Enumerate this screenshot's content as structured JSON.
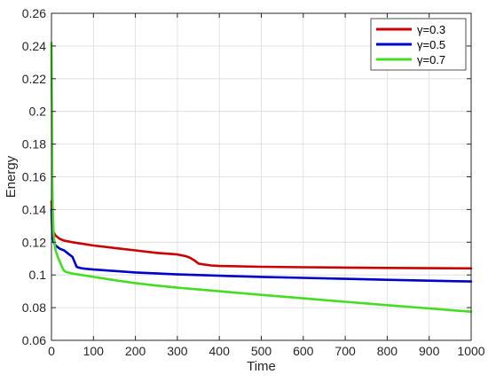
{
  "chart_data": {
    "type": "line",
    "xlabel": "Time",
    "ylabel": "Energy",
    "xlim": [
      0,
      1000
    ],
    "ylim": [
      0.06,
      0.26
    ],
    "xticks": [
      0,
      100,
      200,
      300,
      400,
      500,
      600,
      700,
      800,
      900,
      1000
    ],
    "yticks": [
      0.06,
      0.08,
      0.1,
      0.12,
      0.14,
      0.16,
      0.18,
      0.2,
      0.22,
      0.24,
      0.26
    ],
    "xtick_labels": [
      "0",
      "100",
      "200",
      "300",
      "400",
      "500",
      "600",
      "700",
      "800",
      "900",
      "1000"
    ],
    "ytick_labels": [
      "0.06",
      "0.08",
      "0.1",
      "0.12",
      "0.14",
      "0.16",
      "0.18",
      "0.2",
      "0.22",
      "0.24",
      "0.26"
    ],
    "grid": true,
    "legend_position": "top-right",
    "series": [
      {
        "name": "γ=0.3",
        "color": "#cc0000",
        "x": [
          0,
          2,
          5,
          10,
          20,
          30,
          50,
          100,
          150,
          200,
          250,
          300,
          320,
          330,
          340,
          345,
          350,
          360,
          380,
          400,
          500,
          600,
          700,
          800,
          900,
          1000
        ],
        "y": [
          0.145,
          0.13,
          0.126,
          0.124,
          0.122,
          0.121,
          0.12,
          0.118,
          0.1165,
          0.115,
          0.1135,
          0.1125,
          0.1115,
          0.1105,
          0.109,
          0.108,
          0.107,
          0.1065,
          0.1058,
          0.1055,
          0.105,
          0.1047,
          0.1045,
          0.1043,
          0.1041,
          0.104
        ]
      },
      {
        "name": "γ=0.5",
        "color": "#0000cc",
        "x": [
          0,
          2,
          5,
          10,
          20,
          30,
          40,
          50,
          55,
          60,
          65,
          70,
          80,
          100,
          200,
          300,
          400,
          500,
          600,
          700,
          800,
          900,
          1000
        ],
        "y": [
          0.14,
          0.125,
          0.12,
          0.118,
          0.116,
          0.115,
          0.113,
          0.111,
          0.108,
          0.105,
          0.1045,
          0.1042,
          0.1038,
          0.1033,
          0.1015,
          0.1003,
          0.0995,
          0.0988,
          0.0982,
          0.0976,
          0.097,
          0.0965,
          0.096
        ]
      },
      {
        "name": "γ=0.7",
        "color": "#44dd22",
        "x": [
          0,
          1,
          2,
          3,
          5,
          8,
          10,
          15,
          20,
          25,
          30,
          35,
          50,
          100,
          150,
          200,
          250,
          300,
          400,
          500,
          600,
          700,
          800,
          900,
          1000
        ],
        "y": [
          0.242,
          0.2,
          0.16,
          0.14,
          0.125,
          0.118,
          0.115,
          0.111,
          0.108,
          0.105,
          0.1025,
          0.1018,
          0.1008,
          0.0988,
          0.0968,
          0.095,
          0.0935,
          0.0922,
          0.09,
          0.0878,
          0.0857,
          0.0836,
          0.0815,
          0.0795,
          0.0775
        ]
      }
    ]
  }
}
